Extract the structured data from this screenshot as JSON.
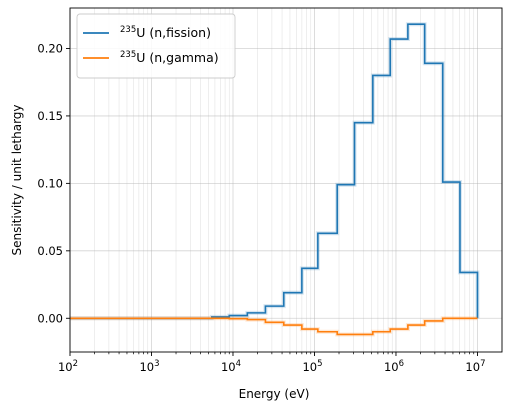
{
  "chart_data": {
    "type": "line",
    "xlabel": "Energy (eV)",
    "ylabel": "Sensitivity / unit lethargy",
    "xscale": "log",
    "xlim": [
      100,
      20000000
    ],
    "ylim": [
      -0.025,
      0.23
    ],
    "grid": true,
    "legend_position": "top-left",
    "x_ticks": [
      {
        "value": 100,
        "base": "10",
        "exp": "2"
      },
      {
        "value": 1000,
        "base": "10",
        "exp": "3"
      },
      {
        "value": 10000,
        "base": "10",
        "exp": "4"
      },
      {
        "value": 100000,
        "base": "10",
        "exp": "5"
      },
      {
        "value": 1000000,
        "base": "10",
        "exp": "6"
      },
      {
        "value": 10000000,
        "base": "10",
        "exp": "7"
      }
    ],
    "y_ticks": [
      {
        "value": 0.0,
        "label": "0.00"
      },
      {
        "value": 0.05,
        "label": "0.05"
      },
      {
        "value": 0.1,
        "label": "0.10"
      },
      {
        "value": 0.15,
        "label": "0.15"
      },
      {
        "value": 0.2,
        "label": "0.20"
      }
    ],
    "series": [
      {
        "name_sup": "235",
        "name_main": "U (n,fission)",
        "color": "#1f77b4",
        "edges": [
          100,
          5500,
          9000,
          15000,
          25000,
          42000,
          70000,
          110000,
          190000,
          310000,
          520000,
          850000,
          1400000,
          2250000,
          3750000,
          6100000,
          10000000
        ],
        "values": [
          0.0,
          0.001,
          0.002,
          0.004,
          0.009,
          0.019,
          0.037,
          0.063,
          0.099,
          0.145,
          0.18,
          0.207,
          0.218,
          0.189,
          0.101,
          0.034
        ]
      },
      {
        "name_sup": "235",
        "name_main": "U (n,gamma)",
        "color": "#ff7f0e",
        "edges": [
          100,
          9000,
          15000,
          25000,
          42000,
          70000,
          110000,
          190000,
          310000,
          520000,
          850000,
          1400000,
          2250000,
          3750000,
          6100000,
          10000000
        ],
        "values": [
          0.0,
          -0.0003,
          -0.001,
          -0.003,
          -0.005,
          -0.008,
          -0.01,
          -0.012,
          -0.012,
          -0.01,
          -0.008,
          -0.005,
          -0.002,
          0.0,
          0.0
        ]
      }
    ]
  }
}
